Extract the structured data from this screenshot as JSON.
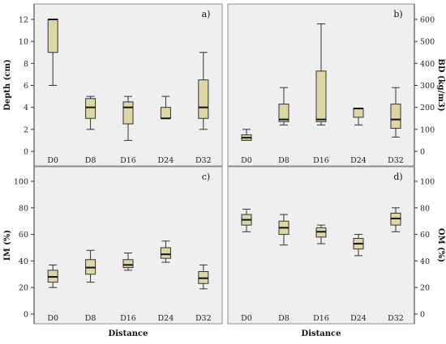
{
  "chart_data": [
    {
      "type": "box",
      "panel_label": "a)",
      "ylabel": "Depth (cm)",
      "y_axis_side": "left",
      "ylim": [
        0,
        12
      ],
      "yticks": [
        0,
        2,
        4,
        6,
        8,
        10,
        12
      ],
      "grid": false,
      "categories": [
        "D0",
        "D8",
        "D16",
        "D24",
        "D32"
      ],
      "boxes": [
        {
          "min": 6,
          "q1": 9,
          "median": 12,
          "q3": 12,
          "max": 12
        },
        {
          "min": 2,
          "q1": 3,
          "median": 4,
          "q3": 4.8,
          "max": 5
        },
        {
          "min": 1,
          "q1": 2.5,
          "median": 4,
          "q3": 4.5,
          "max": 5
        },
        {
          "min": 3,
          "q1": 3,
          "median": 3,
          "q3": 4,
          "max": 5
        },
        {
          "min": 2,
          "q1": 3,
          "median": 4,
          "q3": 6.5,
          "max": 9
        }
      ]
    },
    {
      "type": "box",
      "panel_label": "b)",
      "ylabel": "BD (kg/m3)",
      "y_axis_side": "right",
      "ylim": [
        0,
        600
      ],
      "yticks": [
        0,
        100,
        200,
        300,
        400,
        500,
        600
      ],
      "grid": false,
      "categories": [
        "D0",
        "D8",
        "D16",
        "D24",
        "D32"
      ],
      "boxes": [
        {
          "min": 50,
          "q1": 50,
          "median": 62,
          "q3": 75,
          "max": 100
        },
        {
          "min": 120,
          "q1": 135,
          "median": 145,
          "q3": 215,
          "max": 290
        },
        {
          "min": 120,
          "q1": 135,
          "median": 145,
          "q3": 365,
          "max": 580
        },
        {
          "min": 120,
          "q1": 155,
          "median": 195,
          "q3": 195,
          "max": 195
        },
        {
          "min": 65,
          "q1": 105,
          "median": 145,
          "q3": 215,
          "max": 290
        }
      ]
    },
    {
      "type": "box",
      "panel_label": "c)",
      "ylabel": "IM (%)",
      "y_axis_side": "left",
      "xlabel": "Distance",
      "ylim": [
        0,
        100
      ],
      "yticks": [
        0,
        20,
        40,
        60,
        80,
        100
      ],
      "grid": false,
      "categories": [
        "D0",
        "D8",
        "D16",
        "D24",
        "D32"
      ],
      "boxes": [
        {
          "min": 20,
          "q1": 24,
          "median": 28,
          "q3": 33,
          "max": 37
        },
        {
          "min": 24,
          "q1": 30,
          "median": 35,
          "q3": 41,
          "max": 48
        },
        {
          "min": 33,
          "q1": 35,
          "median": 37,
          "q3": 41,
          "max": 46
        },
        {
          "min": 39,
          "q1": 42,
          "median": 45,
          "q3": 50,
          "max": 55
        },
        {
          "min": 19,
          "q1": 23,
          "median": 27,
          "q3": 32,
          "max": 37
        }
      ]
    },
    {
      "type": "box",
      "panel_label": "d)",
      "ylabel": "OM (%)",
      "y_axis_side": "right",
      "xlabel": "Distance",
      "ylim": [
        0,
        100
      ],
      "yticks": [
        0,
        20,
        40,
        60,
        80,
        100
      ],
      "grid": false,
      "categories": [
        "D0",
        "D8",
        "D16",
        "D24",
        "D32"
      ],
      "boxes": [
        {
          "min": 62,
          "q1": 67,
          "median": 71,
          "q3": 75,
          "max": 79
        },
        {
          "min": 52,
          "q1": 60,
          "median": 65,
          "q3": 70,
          "max": 75
        },
        {
          "min": 53,
          "q1": 58,
          "median": 62,
          "q3": 65,
          "max": 67
        },
        {
          "min": 44,
          "q1": 49,
          "median": 53,
          "q3": 57,
          "max": 60
        },
        {
          "min": 62,
          "q1": 67,
          "median": 72,
          "q3": 76,
          "max": 80
        }
      ]
    }
  ],
  "colors": {
    "box_fill": "#ddd7a4",
    "panel_background": "#efefef"
  }
}
